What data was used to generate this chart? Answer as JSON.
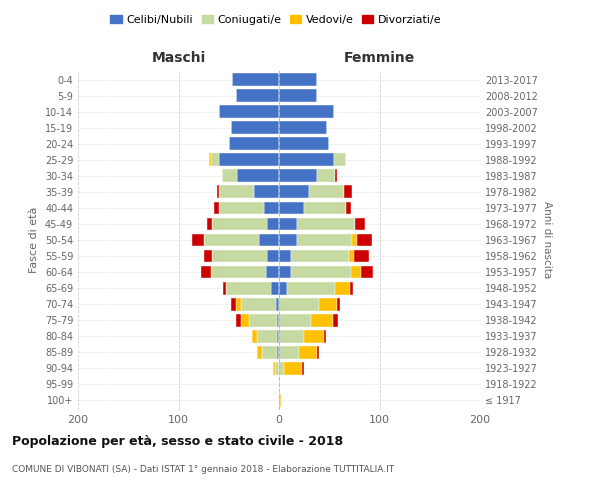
{
  "age_groups": [
    "100+",
    "95-99",
    "90-94",
    "85-89",
    "80-84",
    "75-79",
    "70-74",
    "65-69",
    "60-64",
    "55-59",
    "50-54",
    "45-49",
    "40-44",
    "35-39",
    "30-34",
    "25-29",
    "20-24",
    "15-19",
    "10-14",
    "5-9",
    "0-4"
  ],
  "birth_years": [
    "≤ 1917",
    "1918-1922",
    "1923-1927",
    "1928-1932",
    "1933-1937",
    "1938-1942",
    "1943-1947",
    "1948-1952",
    "1953-1957",
    "1958-1962",
    "1963-1967",
    "1968-1972",
    "1973-1977",
    "1978-1982",
    "1983-1987",
    "1988-1992",
    "1993-1997",
    "1998-2002",
    "2003-2007",
    "2008-2012",
    "2013-2017"
  ],
  "colors": {
    "celibi": "#4472c4",
    "coniugati": "#c5d9a0",
    "vedovi": "#ffc000",
    "divorziati": "#cc0000"
  },
  "maschi": {
    "celibi": [
      0,
      0,
      0,
      2,
      2,
      2,
      3,
      8,
      13,
      12,
      20,
      12,
      15,
      25,
      42,
      60,
      50,
      48,
      60,
      43,
      47
    ],
    "coniugati": [
      0,
      0,
      4,
      15,
      20,
      28,
      35,
      45,
      55,
      55,
      55,
      55,
      45,
      35,
      15,
      8,
      0,
      0,
      0,
      0,
      0
    ],
    "vedovi": [
      0,
      0,
      2,
      5,
      5,
      8,
      5,
      0,
      0,
      0,
      0,
      0,
      0,
      0,
      0,
      2,
      0,
      0,
      0,
      0,
      0
    ],
    "divorziati": [
      0,
      0,
      0,
      0,
      0,
      5,
      5,
      3,
      10,
      8,
      12,
      5,
      5,
      2,
      0,
      0,
      0,
      0,
      0,
      0,
      0
    ]
  },
  "femmine": {
    "celibi": [
      0,
      0,
      0,
      0,
      0,
      0,
      0,
      8,
      12,
      12,
      18,
      18,
      25,
      30,
      38,
      55,
      50,
      48,
      55,
      38,
      38
    ],
    "coniugati": [
      0,
      0,
      5,
      20,
      25,
      32,
      40,
      48,
      60,
      58,
      55,
      58,
      42,
      35,
      18,
      12,
      0,
      0,
      0,
      0,
      0
    ],
    "vedovi": [
      2,
      0,
      18,
      18,
      20,
      22,
      18,
      15,
      10,
      5,
      5,
      0,
      0,
      0,
      0,
      0,
      0,
      0,
      0,
      0,
      0
    ],
    "divorziati": [
      0,
      0,
      2,
      2,
      2,
      5,
      3,
      3,
      12,
      15,
      15,
      10,
      5,
      8,
      2,
      0,
      0,
      0,
      0,
      0,
      0
    ]
  },
  "title": "Popolazione per età, sesso e stato civile - 2018",
  "subtitle": "COMUNE DI VIBONATI (SA) - Dati ISTAT 1° gennaio 2018 - Elaborazione TUTTITALIA.IT",
  "xlabel_left": "Maschi",
  "xlabel_right": "Femmine",
  "ylabel_left": "Fasce di età",
  "ylabel_right": "Anni di nascita",
  "legend_labels": [
    "Celibi/Nubili",
    "Coniugati/e",
    "Vedovi/e",
    "Divorziati/e"
  ],
  "xlim": 200,
  "bg_color": "#ffffff",
  "grid_color": "#cccccc"
}
